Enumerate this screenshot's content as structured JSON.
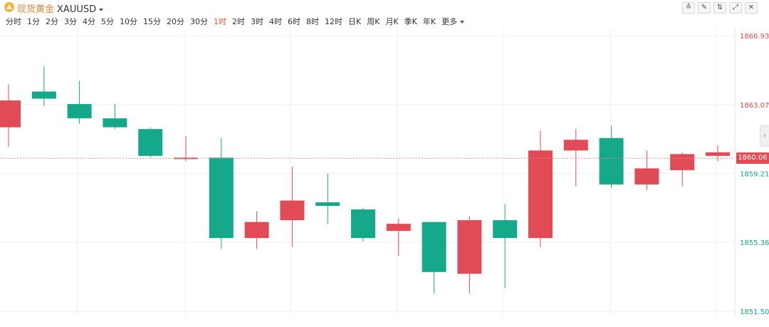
{
  "header": {
    "icon": "gold-triangle-icon",
    "name": "现货黄金",
    "code": "XAUUSD"
  },
  "toolbar": [
    {
      "icon": "line-tool-icon",
      "glyph": "≙"
    },
    {
      "icon": "draw-pen-icon",
      "glyph": "✎"
    },
    {
      "icon": "indicator-icon",
      "glyph": "⇅"
    },
    {
      "icon": "expand-icon",
      "glyph": "⤢"
    },
    {
      "icon": "close-icon",
      "glyph": "✕"
    }
  ],
  "periods": [
    "分时",
    "1分",
    "2分",
    "3分",
    "4分",
    "5分",
    "10分",
    "15分",
    "20分",
    "30分",
    "1时",
    "2时",
    "3时",
    "4时",
    "6时",
    "8时",
    "12时",
    "日K",
    "周K",
    "月K",
    "季K",
    "年K",
    "更多"
  ],
  "active_period": "1时",
  "more_label": "更多",
  "current_price": "1860.06",
  "colors": {
    "up": "#e04b55",
    "down": "#16a88a",
    "up_label": "#e04b55",
    "down_label": "#16a88a"
  },
  "chart_data": {
    "type": "candlestick",
    "ylim": [
      1851.5,
      1866.93
    ],
    "yticks": [
      {
        "value": 1866.93,
        "label": "1866.93",
        "tone": "up"
      },
      {
        "value": 1863.07,
        "label": "1863.07",
        "tone": "up"
      },
      {
        "value": 1859.21,
        "label": "1859.21",
        "tone": "down"
      },
      {
        "value": 1855.36,
        "label": "1855.36",
        "tone": "down"
      },
      {
        "value": 1851.5,
        "label": "1851.50",
        "tone": "down"
      }
    ],
    "last_price": 1860.06,
    "candles": [
      {
        "o": 1861.8,
        "c": 1863.3,
        "h": 1864.2,
        "l": 1860.7
      },
      {
        "o": 1863.8,
        "c": 1863.4,
        "h": 1865.2,
        "l": 1863.0
      },
      {
        "o": 1863.1,
        "c": 1862.3,
        "h": 1864.4,
        "l": 1862.0
      },
      {
        "o": 1862.3,
        "c": 1861.8,
        "h": 1863.1,
        "l": 1861.7
      },
      {
        "o": 1861.7,
        "c": 1860.2,
        "h": 1861.8,
        "l": 1860.1
      },
      {
        "o": 1860.1,
        "c": 1860.1,
        "h": 1861.3,
        "l": 1859.9
      },
      {
        "o": 1860.1,
        "c": 1855.6,
        "h": 1861.2,
        "l": 1855.0
      },
      {
        "o": 1855.6,
        "c": 1856.5,
        "h": 1857.1,
        "l": 1855.0
      },
      {
        "o": 1856.6,
        "c": 1857.7,
        "h": 1859.6,
        "l": 1855.1
      },
      {
        "o": 1857.6,
        "c": 1857.4,
        "h": 1859.2,
        "l": 1856.4
      },
      {
        "o": 1857.2,
        "c": 1855.6,
        "h": 1857.3,
        "l": 1855.4
      },
      {
        "o": 1856.0,
        "c": 1856.4,
        "h": 1856.7,
        "l": 1854.6
      },
      {
        "o": 1856.5,
        "c": 1853.7,
        "h": 1856.5,
        "l": 1852.5
      },
      {
        "o": 1853.6,
        "c": 1856.6,
        "h": 1856.8,
        "l": 1852.5
      },
      {
        "o": 1856.6,
        "c": 1855.6,
        "h": 1857.5,
        "l": 1852.8
      },
      {
        "o": 1855.6,
        "c": 1860.5,
        "h": 1861.6,
        "l": 1855.1
      },
      {
        "o": 1860.5,
        "c": 1861.1,
        "h": 1861.7,
        "l": 1858.5
      },
      {
        "o": 1861.2,
        "c": 1858.6,
        "h": 1861.9,
        "l": 1858.4
      },
      {
        "o": 1858.6,
        "c": 1859.5,
        "h": 1860.5,
        "l": 1858.3
      },
      {
        "o": 1859.4,
        "c": 1860.3,
        "h": 1860.4,
        "l": 1858.5
      },
      {
        "o": 1860.2,
        "c": 1860.4,
        "h": 1860.8,
        "l": 1859.9
      }
    ]
  }
}
